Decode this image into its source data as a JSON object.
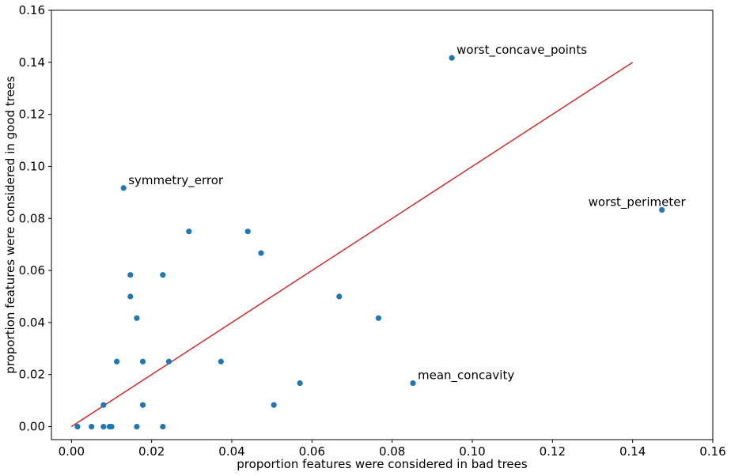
{
  "chart_data": {
    "type": "scatter",
    "title": "",
    "xlabel": "proportion features were considered in bad trees",
    "ylabel": "proportion features were considered in good trees",
    "xlim": [
      -0.005,
      0.16
    ],
    "ylim": [
      -0.005,
      0.16
    ],
    "xticks": [
      0.0,
      0.02,
      0.04,
      0.06,
      0.08,
      0.1,
      0.12,
      0.14,
      0.16
    ],
    "yticks": [
      0.0,
      0.02,
      0.04,
      0.06,
      0.08,
      0.1,
      0.12,
      0.14,
      0.16
    ],
    "grid": false,
    "point_color": "#1f77b4",
    "line_color": "#d62728",
    "points": [
      {
        "x": 0.0015,
        "y": 0.0
      },
      {
        "x": 0.005,
        "y": 0.0
      },
      {
        "x": 0.008,
        "y": 0.0
      },
      {
        "x": 0.0095,
        "y": 0.0
      },
      {
        "x": 0.01,
        "y": 0.0
      },
      {
        "x": 0.0163,
        "y": 0.0
      },
      {
        "x": 0.0228,
        "y": 0.0
      },
      {
        "x": 0.008,
        "y": 0.0083
      },
      {
        "x": 0.0178,
        "y": 0.0083
      },
      {
        "x": 0.0505,
        "y": 0.0083
      },
      {
        "x": 0.0113,
        "y": 0.025
      },
      {
        "x": 0.0178,
        "y": 0.025
      },
      {
        "x": 0.0243,
        "y": 0.025
      },
      {
        "x": 0.0373,
        "y": 0.025
      },
      {
        "x": 0.057,
        "y": 0.0167
      },
      {
        "x": 0.0852,
        "y": 0.0167
      },
      {
        "x": 0.0163,
        "y": 0.0417
      },
      {
        "x": 0.0766,
        "y": 0.0417
      },
      {
        "x": 0.0147,
        "y": 0.05
      },
      {
        "x": 0.0668,
        "y": 0.05
      },
      {
        "x": 0.0147,
        "y": 0.0583
      },
      {
        "x": 0.0228,
        "y": 0.0583
      },
      {
        "x": 0.0473,
        "y": 0.0667
      },
      {
        "x": 0.0293,
        "y": 0.075
      },
      {
        "x": 0.044,
        "y": 0.075
      },
      {
        "x": 0.1473,
        "y": 0.0833
      },
      {
        "x": 0.013,
        "y": 0.0917
      },
      {
        "x": 0.0949,
        "y": 0.1417
      }
    ],
    "reference_line": {
      "x": [
        0.0,
        0.14
      ],
      "y": [
        0.0,
        0.14
      ]
    },
    "annotations": [
      {
        "text": "worst_concave_points",
        "x": 0.0949,
        "y": 0.1417,
        "align": "left"
      },
      {
        "text": "symmetry_error",
        "x": 0.013,
        "y": 0.0917,
        "align": "left"
      },
      {
        "text": "worst_perimeter",
        "x": 0.1473,
        "y": 0.0833,
        "align": "right"
      },
      {
        "text": "mean_concavity",
        "x": 0.0852,
        "y": 0.0167,
        "align": "left"
      }
    ]
  }
}
